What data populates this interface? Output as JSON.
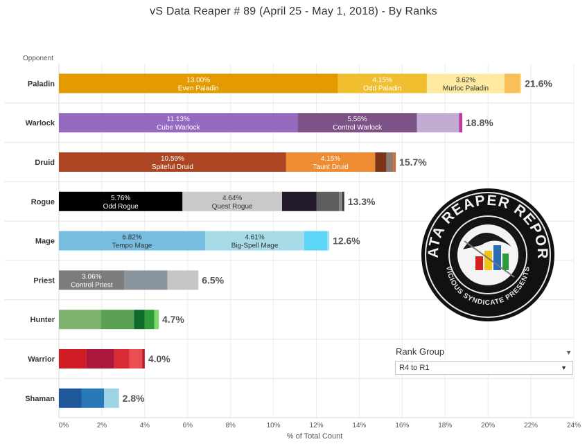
{
  "title": "vS Data Reaper #  89 (April 25 - May 1, 2018) - By Ranks",
  "rank_group": {
    "title": "Rank Group",
    "selected": "R4 to R1"
  },
  "logo": {
    "top_text": "DATA REAPER REPORT",
    "bottom_text": "VICIOUS SYNDICATE PRESENTS"
  },
  "chart_data": {
    "type": "bar",
    "orientation": "horizontal",
    "stacked": true,
    "title": "vS Data Reaper #  89 (April 25 - May 1, 2018) - By Ranks",
    "ylabel": "Opponent",
    "xlabel": "% of Total Count",
    "xlim": [
      0,
      24
    ],
    "xticks": [
      "0%",
      "2%",
      "4%",
      "6%",
      "8%",
      "10%",
      "12%",
      "14%",
      "16%",
      "18%",
      "20%",
      "22%",
      "24%"
    ],
    "grid": true,
    "categories": [
      {
        "name": "Paladin",
        "total": "21.6%",
        "segments": [
          {
            "value": 13.0,
            "label": "13.00%",
            "name": "Even Paladin",
            "color": "#e49b00",
            "text_color": "#ffffff"
          },
          {
            "value": 4.15,
            "label": "4.15%",
            "name": "Odd Paladin",
            "color": "#f0be2e",
            "text_color": "#ffffff"
          },
          {
            "value": 3.62,
            "label": "3.62%",
            "name": "Murloc Paladin",
            "color": "#fde9a0",
            "text_color": "#333333"
          },
          {
            "value": 0.73,
            "color": "#fbbf5a"
          },
          {
            "value": 0.05,
            "color": "#f7e48a"
          }
        ]
      },
      {
        "name": "Warlock",
        "total": "18.8%",
        "segments": [
          {
            "value": 11.13,
            "label": "11.13%",
            "name": "Cube Warlock",
            "color": "#9569c0",
            "text_color": "#ffffff"
          },
          {
            "value": 5.56,
            "label": "5.56%",
            "name": "Control Warlock",
            "color": "#7d5286",
            "text_color": "#ffffff"
          },
          {
            "value": 1.96,
            "color": "#c2acd3"
          },
          {
            "value": 0.15,
            "color": "#c0399a"
          }
        ]
      },
      {
        "name": "Druid",
        "total": "15.7%",
        "segments": [
          {
            "value": 10.59,
            "label": "10.59%",
            "name": "Spiteful Druid",
            "color": "#ab4522",
            "text_color": "#ffffff"
          },
          {
            "value": 4.15,
            "label": "4.15%",
            "name": "Taunt Druid",
            "color": "#ee8c33",
            "text_color": "#ffffff"
          },
          {
            "value": 0.52,
            "color": "#7a3519"
          },
          {
            "value": 0.32,
            "color": "#8a7a72"
          },
          {
            "value": 0.12,
            "color": "#d26a34"
          }
        ]
      },
      {
        "name": "Rogue",
        "total": "13.3%",
        "segments": [
          {
            "value": 5.76,
            "label": "5.76%",
            "name": "Odd Rogue",
            "color": "#000000",
            "text_color": "#ffffff"
          },
          {
            "value": 4.64,
            "label": "4.64%",
            "name": "Quest Rogue",
            "color": "#c9c9c9",
            "text_color": "#333333"
          },
          {
            "value": 1.6,
            "color": "#241a2d"
          },
          {
            "value": 1.05,
            "color": "#5e5e5e"
          },
          {
            "value": 0.15,
            "color": "#8a8a8a"
          },
          {
            "value": 0.1,
            "color": "#3a3a3a"
          }
        ]
      },
      {
        "name": "Mage",
        "total": "12.6%",
        "segments": [
          {
            "value": 6.82,
            "label": "6.82%",
            "name": "Tempo Mage",
            "color": "#76bde0",
            "text_color": "#333333"
          },
          {
            "value": 4.61,
            "label": "4.61%",
            "name": "Big-Spell Mage",
            "color": "#a8dbe8",
            "text_color": "#333333"
          },
          {
            "value": 1.07,
            "color": "#5dd5f6"
          },
          {
            "value": 0.1,
            "color": "#9fe0f0"
          }
        ]
      },
      {
        "name": "Priest",
        "total": "6.5%",
        "segments": [
          {
            "value": 3.06,
            "label": "3.06%",
            "name": "Control Priest",
            "color": "#7c7c7c",
            "text_color": "#ffffff"
          },
          {
            "value": 2.0,
            "color": "#8b959d"
          },
          {
            "value": 1.44,
            "color": "#c6c6c6"
          }
        ]
      },
      {
        "name": "Hunter",
        "total": "4.7%",
        "segments": [
          {
            "value": 1.95,
            "color": "#7eb26f"
          },
          {
            "value": 1.55,
            "color": "#5aa155"
          },
          {
            "value": 0.5,
            "color": "#0f6b2b"
          },
          {
            "value": 0.45,
            "color": "#2e9a3a"
          },
          {
            "value": 0.2,
            "color": "#7ed96a"
          }
        ]
      },
      {
        "name": "Warrior",
        "total": "4.0%",
        "segments": [
          {
            "value": 1.28,
            "color": "#cf1c24"
          },
          {
            "value": 1.3,
            "color": "#ab163a"
          },
          {
            "value": 0.7,
            "color": "#d92b33"
          },
          {
            "value": 0.6,
            "color": "#ec4d52"
          },
          {
            "value": 0.12,
            "color": "#b81c2c"
          }
        ]
      },
      {
        "name": "Shaman",
        "total": "2.8%",
        "segments": [
          {
            "value": 1.05,
            "color": "#1f5899"
          },
          {
            "value": 1.05,
            "color": "#2878b8"
          },
          {
            "value": 0.7,
            "color": "#9ed3e6"
          }
        ]
      }
    ]
  }
}
